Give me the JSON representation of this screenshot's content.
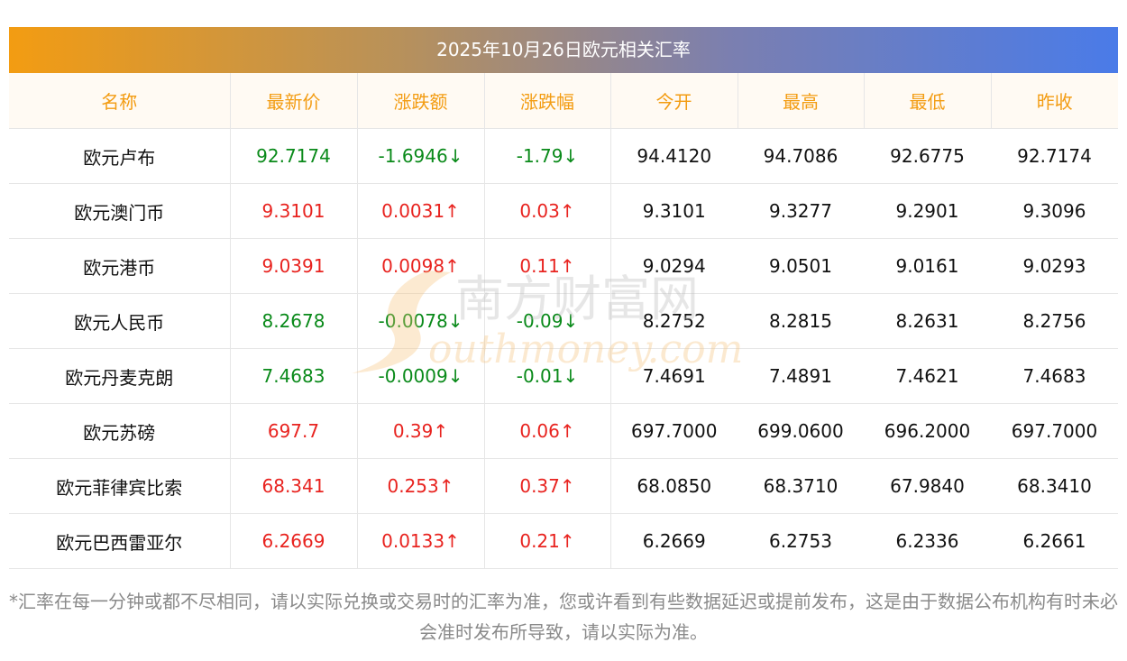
{
  "title": "2025年10月26日欧元相关汇率",
  "headers": [
    "名称",
    "最新价",
    "涨跌额",
    "涨跌幅",
    "今开",
    "最高",
    "最低",
    "昨收"
  ],
  "rows": [
    {
      "name": "欧元卢布",
      "latest": "92.7174",
      "change": "-1.6946↓",
      "pct": "-1.79↓",
      "open": "94.4120",
      "high": "94.7086",
      "low": "92.6775",
      "prev": "92.7174",
      "dir": "down"
    },
    {
      "name": "欧元澳门币",
      "latest": "9.3101",
      "change": "0.0031↑",
      "pct": "0.03↑",
      "open": "9.3101",
      "high": "9.3277",
      "low": "9.2901",
      "prev": "9.3096",
      "dir": "up"
    },
    {
      "name": "欧元港币",
      "latest": "9.0391",
      "change": "0.0098↑",
      "pct": "0.11↑",
      "open": "9.0294",
      "high": "9.0501",
      "low": "9.0161",
      "prev": "9.0293",
      "dir": "up"
    },
    {
      "name": "欧元人民币",
      "latest": "8.2678",
      "change": "-0.0078↓",
      "pct": "-0.09↓",
      "open": "8.2752",
      "high": "8.2815",
      "low": "8.2631",
      "prev": "8.2756",
      "dir": "down"
    },
    {
      "name": "欧元丹麦克朗",
      "latest": "7.4683",
      "change": "-0.0009↓",
      "pct": "-0.01↓",
      "open": "7.4691",
      "high": "7.4891",
      "low": "7.4621",
      "prev": "7.4683",
      "dir": "down"
    },
    {
      "name": "欧元苏磅",
      "latest": "697.7",
      "change": "0.39↑",
      "pct": "0.06↑",
      "open": "697.7000",
      "high": "699.0600",
      "low": "696.2000",
      "prev": "697.7000",
      "dir": "up"
    },
    {
      "name": "欧元菲律宾比索",
      "latest": "68.341",
      "change": "0.253↑",
      "pct": "0.37↑",
      "open": "68.0850",
      "high": "68.3710",
      "low": "67.9840",
      "prev": "68.3410",
      "dir": "up"
    },
    {
      "name": "欧元巴西雷亚尔",
      "latest": "6.2669",
      "change": "0.0133↑",
      "pct": "0.21↑",
      "open": "6.2669",
      "high": "6.2753",
      "low": "6.2336",
      "prev": "6.2661",
      "dir": "up"
    }
  ],
  "watermark": {
    "cn": "南方财富网",
    "en": "outhmoney.com"
  },
  "footnote": "*汇率在每一分钟或都不尽相同，请以实际兑换或交易时的汇率为准，您或许看到有些数据延迟或提前发布，这是由于数据公布机构有时未必会准时发布所导致，请以实际为准。",
  "colors": {
    "up": "#e8231f",
    "down": "#0a8a1a",
    "header_text": "#f39c12"
  }
}
